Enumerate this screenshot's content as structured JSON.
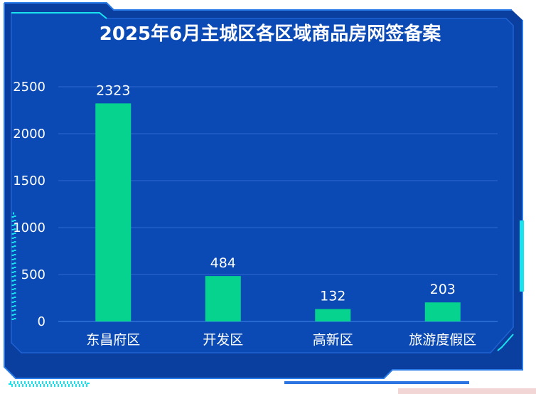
{
  "title": "2025年6月主城区各区域商品房网签备案",
  "colors": {
    "background": "#0a3fa0",
    "panel": "#0b49b4",
    "bar": "#06d38e",
    "accent": "#19e3ee",
    "grid": "#2e6ad1",
    "text": "#ffffff"
  },
  "chart_data": {
    "type": "bar",
    "title": "2025年6月主城区各区域商品房网签备案",
    "categories": [
      "东昌府区",
      "开发区",
      "高新区",
      "旅游度假区"
    ],
    "values": [
      2323,
      484,
      132,
      203
    ],
    "ylim": [
      0,
      2500
    ],
    "yticks": [
      0,
      500,
      1000,
      1500,
      2000,
      2500
    ],
    "ytick_labels": [
      "0",
      "500",
      "1000",
      "1500",
      "2000",
      "2500"
    ],
    "grid": true,
    "data_labels": true,
    "xlabel": "",
    "ylabel": ""
  }
}
